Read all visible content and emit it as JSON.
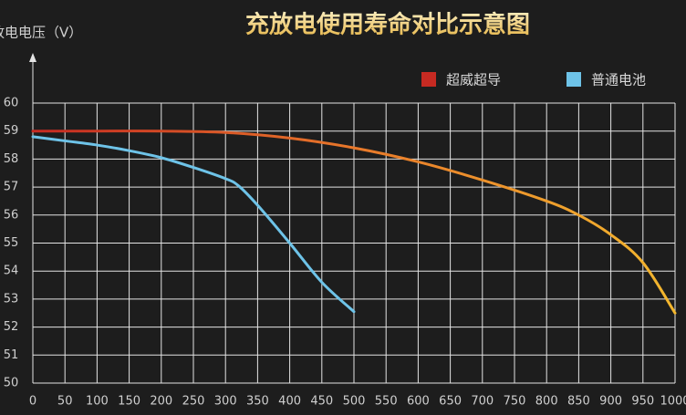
{
  "chart_data": {
    "type": "line",
    "title": "充放电使用寿命对比示意图",
    "y_label": "放电电压（V）",
    "series": [
      {
        "name": "超威超导",
        "color": "#c62a22",
        "gradient": [
          "#c62a22",
          "#e8782a",
          "#f3b72e"
        ],
        "x": [
          0,
          100,
          200,
          300,
          400,
          500,
          600,
          700,
          800,
          850,
          900,
          950,
          1000
        ],
        "values": [
          59,
          59,
          59,
          58.95,
          58.75,
          58.4,
          57.9,
          57.25,
          56.5,
          56.0,
          55.3,
          54.3,
          52.5
        ]
      },
      {
        "name": "普通电池",
        "color": "#6ec3e8",
        "x": [
          0,
          50,
          100,
          150,
          200,
          250,
          300,
          320,
          350,
          400,
          450,
          500
        ],
        "values": [
          58.8,
          58.65,
          58.5,
          58.3,
          58.05,
          57.7,
          57.3,
          57.05,
          56.35,
          55.0,
          53.6,
          52.55
        ]
      }
    ],
    "xlim": [
      0,
      1000
    ],
    "xticks": [
      0,
      50,
      100,
      150,
      200,
      250,
      300,
      350,
      400,
      450,
      500,
      550,
      600,
      650,
      700,
      750,
      800,
      850,
      900,
      950,
      1000
    ],
    "ylim": [
      50,
      60
    ],
    "yticks": [
      50,
      51,
      52,
      53,
      54,
      55,
      56,
      57,
      58,
      59,
      60
    ],
    "grid": true,
    "legend": "top-right"
  }
}
